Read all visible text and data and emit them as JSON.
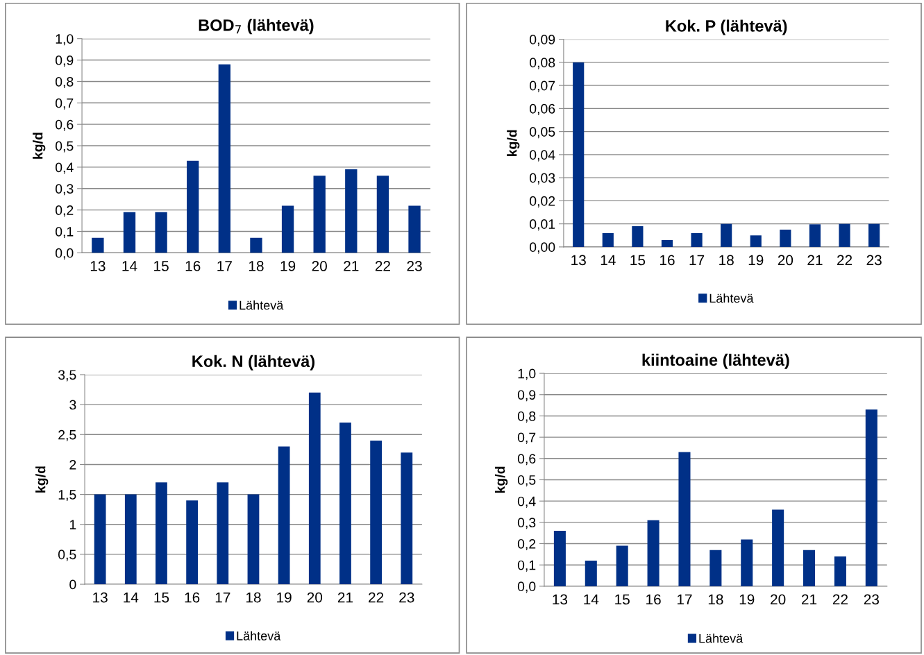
{
  "chart_data": [
    {
      "type": "bar",
      "title": "BOD$_{7}$ (lähtevä)",
      "ylabel": "kg/d",
      "categories": [
        "13",
        "14",
        "15",
        "16",
        "17",
        "18",
        "19",
        "20",
        "21",
        "22",
        "23"
      ],
      "series": [
        {
          "name": "Lähtevä",
          "color": "#003087",
          "values": [
            0.07,
            0.19,
            0.19,
            0.43,
            0.88,
            0.07,
            0.22,
            0.36,
            0.39,
            0.36,
            0.22
          ]
        }
      ],
      "ylim": [
        0,
        1.0
      ],
      "yticks": [
        {
          "value": 0,
          "label": "0,0"
        },
        {
          "value": 0.1,
          "label": "0,1"
        },
        {
          "value": 0.2,
          "label": "0,2"
        },
        {
          "value": 0.3,
          "label": "0,3"
        },
        {
          "value": 0.4,
          "label": "0,4"
        },
        {
          "value": 0.5,
          "label": "0,5"
        },
        {
          "value": 0.6,
          "label": "0,6"
        },
        {
          "value": 0.7,
          "label": "0,7"
        },
        {
          "value": 0.8,
          "label": "0,8"
        },
        {
          "value": 0.9,
          "label": "0,9"
        },
        {
          "value": 1.0,
          "label": "1,0"
        }
      ],
      "grid": "y",
      "legend": "bottom"
    },
    {
      "type": "bar",
      "title": "Kok. P (lähtevä)",
      "ylabel": "kg/d",
      "categories": [
        "13",
        "14",
        "15",
        "16",
        "17",
        "18",
        "19",
        "20",
        "21",
        "22",
        "23"
      ],
      "series": [
        {
          "name": "Lähtevä",
          "color": "#003087",
          "values": [
            0.08,
            0.006,
            0.009,
            0.003,
            0.006,
            0.01,
            0.005,
            0.0075,
            0.0098,
            0.01,
            0.01
          ]
        }
      ],
      "ylim": [
        0,
        0.09
      ],
      "yticks": [
        {
          "value": 0,
          "label": "0,00"
        },
        {
          "value": 0.01,
          "label": "0,01"
        },
        {
          "value": 0.02,
          "label": "0,02"
        },
        {
          "value": 0.03,
          "label": "0,03"
        },
        {
          "value": 0.04,
          "label": "0,04"
        },
        {
          "value": 0.05,
          "label": "0,05"
        },
        {
          "value": 0.06,
          "label": "0,06"
        },
        {
          "value": 0.07,
          "label": "0,07"
        },
        {
          "value": 0.08,
          "label": "0,08"
        },
        {
          "value": 0.09,
          "label": "0,09"
        }
      ],
      "grid": "y",
      "legend": "bottom"
    },
    {
      "type": "bar",
      "title": "Kok. N (lähtevä)",
      "ylabel": "kg/d",
      "categories": [
        "13",
        "14",
        "15",
        "16",
        "17",
        "18",
        "19",
        "20",
        "21",
        "22",
        "23"
      ],
      "series": [
        {
          "name": "Lähtevä",
          "color": "#003087",
          "values": [
            1.5,
            1.5,
            1.7,
            1.4,
            1.7,
            1.5,
            2.3,
            3.2,
            2.7,
            2.4,
            2.2
          ]
        }
      ],
      "ylim": [
        0,
        3.5
      ],
      "yticks": [
        0,
        {
          "value": 0.5,
          "label": "0,5"
        },
        1,
        {
          "value": 1.5,
          "label": "1,5"
        },
        2,
        {
          "value": 2.5,
          "label": "2,5"
        },
        3,
        {
          "value": 3.5,
          "label": "3,5"
        }
      ],
      "grid": "y",
      "legend": "bottom"
    },
    {
      "type": "bar",
      "title": "kiintoaine (lähtevä)",
      "ylabel": "kg/d",
      "categories": [
        "13",
        "14",
        "15",
        "16",
        "17",
        "18",
        "19",
        "20",
        "21",
        "22",
        "23"
      ],
      "series": [
        {
          "name": "Lähtevä",
          "color": "#003087",
          "values": [
            0.26,
            0.12,
            0.19,
            0.31,
            0.63,
            0.17,
            0.22,
            0.36,
            0.17,
            0.14,
            0.83
          ]
        }
      ],
      "ylim": [
        0,
        1.0
      ],
      "yticks": [
        {
          "value": 0,
          "label": "0,0"
        },
        {
          "value": 0.1,
          "label": "0,1"
        },
        {
          "value": 0.2,
          "label": "0,2"
        },
        {
          "value": 0.3,
          "label": "0,3"
        },
        {
          "value": 0.4,
          "label": "0,4"
        },
        {
          "value": 0.5,
          "label": "0,5"
        },
        {
          "value": 0.6,
          "label": "0,6"
        },
        {
          "value": 0.7,
          "label": "0,7"
        },
        {
          "value": 0.8,
          "label": "0,8"
        },
        {
          "value": 0.9,
          "label": "0,9"
        },
        {
          "value": 1.0,
          "label": "1,0"
        }
      ],
      "grid": "y",
      "legend": "bottom"
    }
  ]
}
